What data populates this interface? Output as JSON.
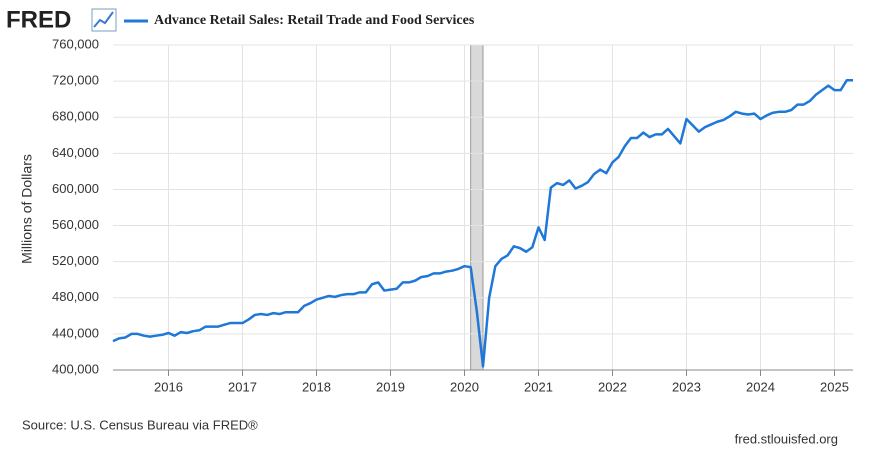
{
  "chart_data": {
    "type": "line",
    "logo": "FRED",
    "y_axis_label": "Millions of Dollars",
    "source": "Source: U.S. Census Bureau via FRED®",
    "site": "fred.stlouisfed.org",
    "xlim": [
      "2015-04",
      "2025-04"
    ],
    "xticks": [
      2016,
      2017,
      2018,
      2019,
      2020,
      2021,
      2022,
      2023,
      2024,
      2025
    ],
    "ylim": [
      400000,
      760000
    ],
    "yticks": [
      {
        "value": 400000,
        "label": "400,000"
      },
      {
        "value": 440000,
        "label": "440,000"
      },
      {
        "value": 480000,
        "label": "480,000"
      },
      {
        "value": 520000,
        "label": "520,000"
      },
      {
        "value": 560000,
        "label": "560,000"
      },
      {
        "value": 600000,
        "label": "600,000"
      },
      {
        "value": 640000,
        "label": "640,000"
      },
      {
        "value": 680000,
        "label": "680,000"
      },
      {
        "value": 720000,
        "label": "720,000"
      },
      {
        "value": 760000,
        "label": "760,000"
      }
    ],
    "grid": true,
    "recessions": [
      {
        "start": "2020-02",
        "end": "2020-04"
      }
    ],
    "x": [
      "2015-04",
      "2015-05",
      "2015-06",
      "2015-07",
      "2015-08",
      "2015-09",
      "2015-10",
      "2015-11",
      "2015-12",
      "2016-01",
      "2016-02",
      "2016-03",
      "2016-04",
      "2016-05",
      "2016-06",
      "2016-07",
      "2016-08",
      "2016-09",
      "2016-10",
      "2016-11",
      "2016-12",
      "2017-01",
      "2017-02",
      "2017-03",
      "2017-04",
      "2017-05",
      "2017-06",
      "2017-07",
      "2017-08",
      "2017-09",
      "2017-10",
      "2017-11",
      "2017-12",
      "2018-01",
      "2018-02",
      "2018-03",
      "2018-04",
      "2018-05",
      "2018-06",
      "2018-07",
      "2018-08",
      "2018-09",
      "2018-10",
      "2018-11",
      "2018-12",
      "2019-01",
      "2019-02",
      "2019-03",
      "2019-04",
      "2019-05",
      "2019-06",
      "2019-07",
      "2019-08",
      "2019-09",
      "2019-10",
      "2019-11",
      "2019-12",
      "2020-01",
      "2020-02",
      "2020-03",
      "2020-04",
      "2020-05",
      "2020-06",
      "2020-07",
      "2020-08",
      "2020-09",
      "2020-10",
      "2020-11",
      "2020-12",
      "2021-01",
      "2021-02",
      "2021-03",
      "2021-04",
      "2021-05",
      "2021-06",
      "2021-07",
      "2021-08",
      "2021-09",
      "2021-10",
      "2021-11",
      "2021-12",
      "2022-01",
      "2022-02",
      "2022-03",
      "2022-04",
      "2022-05",
      "2022-06",
      "2022-07",
      "2022-08",
      "2022-09",
      "2022-10",
      "2022-11",
      "2022-12",
      "2023-01",
      "2023-02",
      "2023-03",
      "2023-04",
      "2023-05",
      "2023-06",
      "2023-07",
      "2023-08",
      "2023-09",
      "2023-10",
      "2023-11",
      "2023-12",
      "2024-01",
      "2024-02",
      "2024-03",
      "2024-04",
      "2024-05",
      "2024-06",
      "2024-07",
      "2024-08",
      "2024-09",
      "2024-10",
      "2024-11",
      "2024-12",
      "2025-01",
      "2025-02",
      "2025-03",
      "2025-04"
    ],
    "series": [
      {
        "name": "Advance Retail Sales: Retail Trade and Food Services",
        "color": "#1f78d8",
        "values": [
          432000,
          435000,
          436000,
          440000,
          440000,
          438000,
          437000,
          438000,
          439000,
          441000,
          438000,
          442000,
          441000,
          443000,
          444000,
          448000,
          448000,
          448000,
          450000,
          452000,
          452000,
          452000,
          456000,
          461000,
          462000,
          461000,
          463000,
          462000,
          464000,
          464000,
          464000,
          471000,
          474000,
          478000,
          480000,
          482000,
          481000,
          483000,
          484000,
          484000,
          486000,
          486000,
          495000,
          497000,
          488000,
          489000,
          490000,
          497000,
          497000,
          499000,
          503000,
          504000,
          507000,
          507000,
          509000,
          510000,
          512000,
          515000,
          514000,
          465000,
          404000,
          480000,
          515000,
          523000,
          527000,
          537000,
          535000,
          531000,
          536000,
          558000,
          544000,
          602000,
          607000,
          605000,
          610000,
          601000,
          604000,
          608000,
          617000,
          622000,
          618000,
          630000,
          636000,
          648000,
          657000,
          657000,
          663000,
          658000,
          661000,
          661000,
          667000,
          659000,
          651000,
          678000,
          671000,
          664000,
          669000,
          672000,
          675000,
          677000,
          681000,
          686000,
          684000,
          683000,
          684000,
          678000,
          682000,
          685000,
          686000,
          686000,
          688000,
          694000,
          694000,
          698000,
          705000,
          710000,
          715000,
          710000,
          710000,
          721000,
          721000
        ]
      }
    ]
  }
}
